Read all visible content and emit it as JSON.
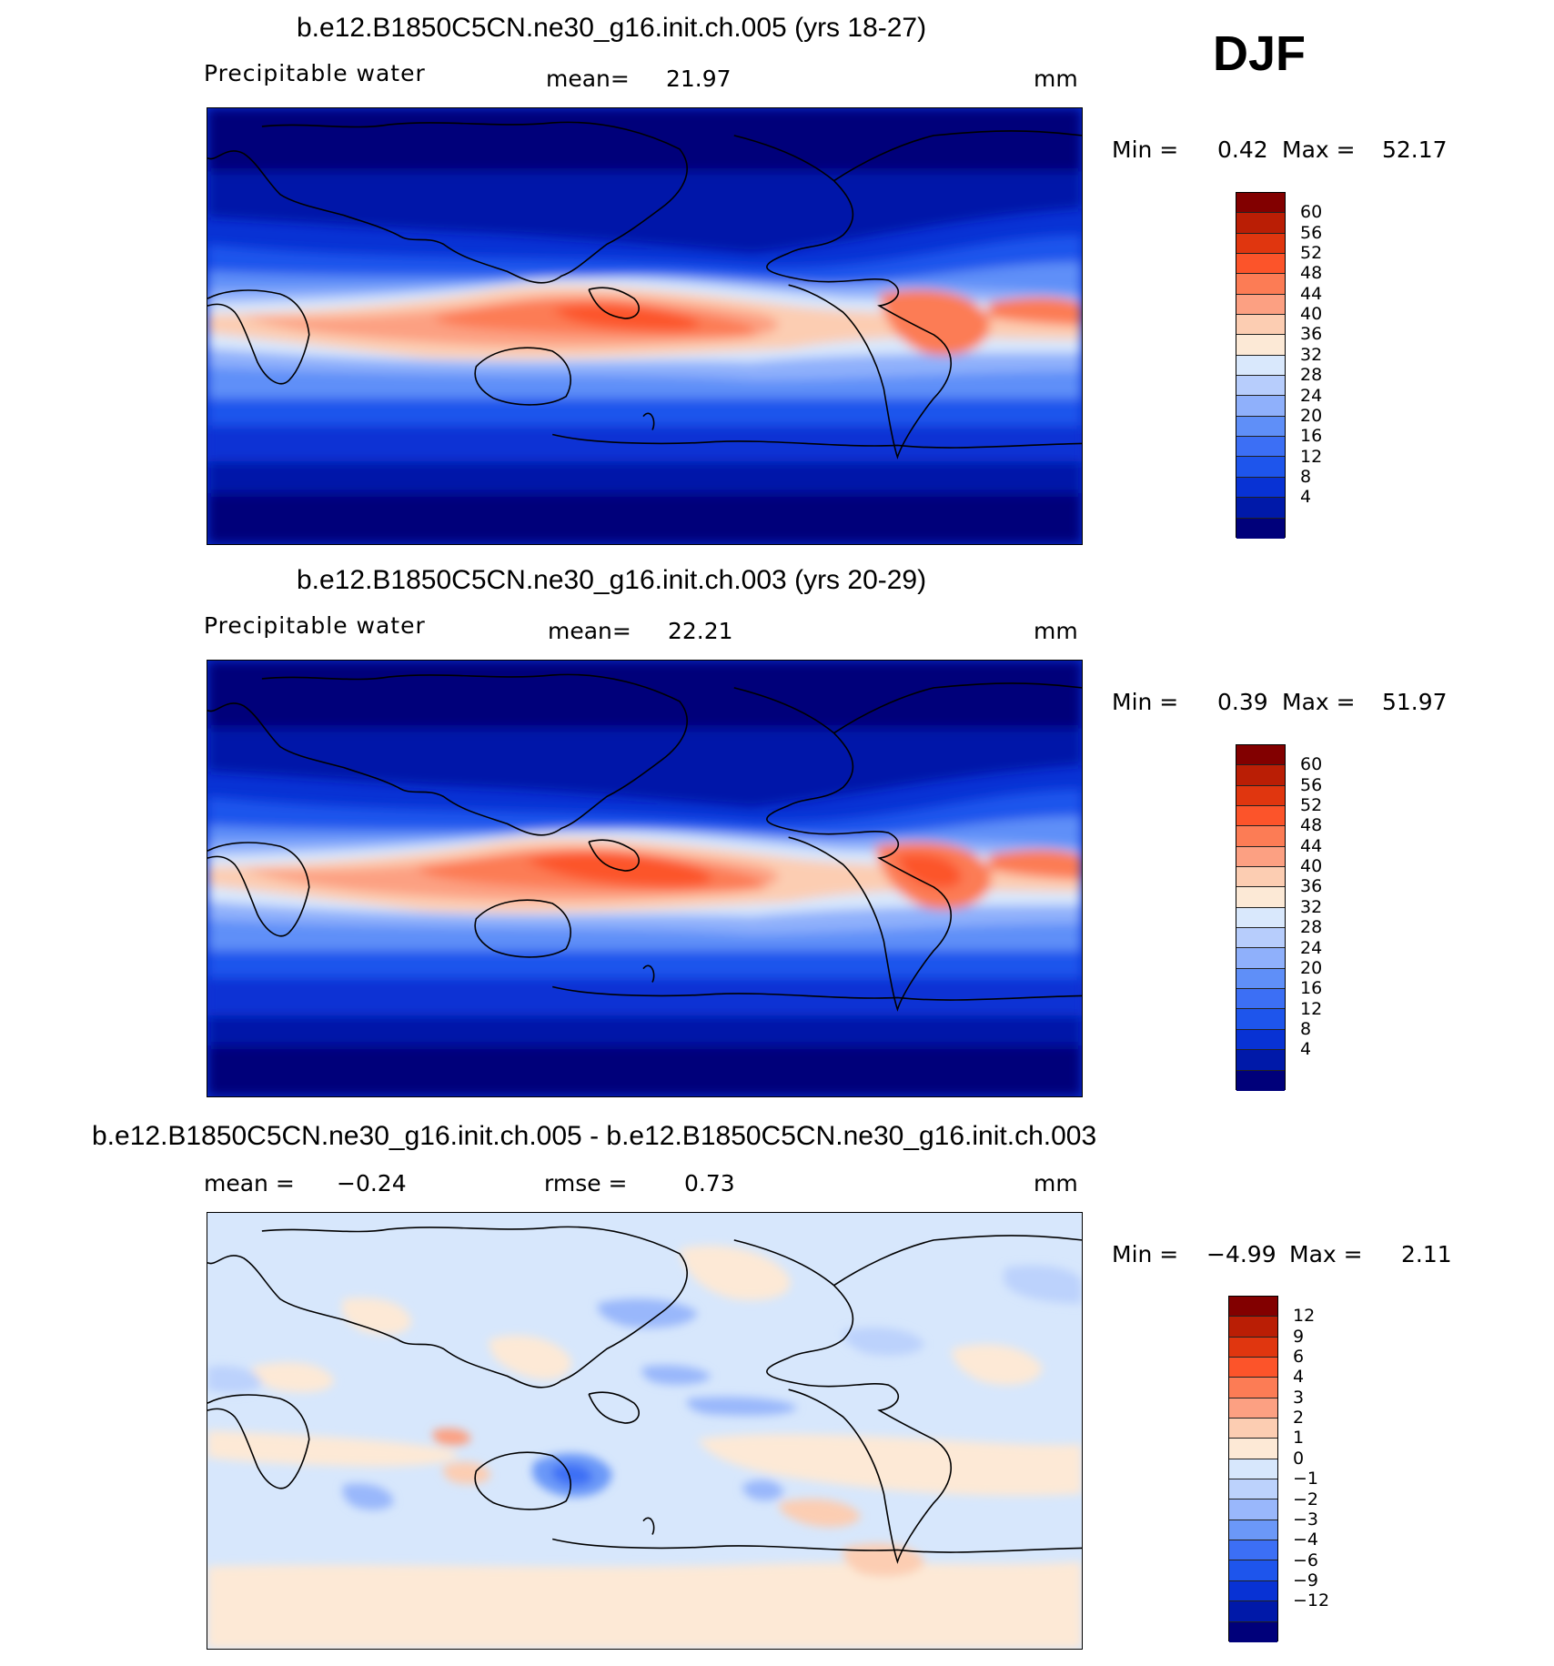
{
  "season": "DJF",
  "colors": {
    "abs_scale": [
      "#00007a",
      "#0019a9",
      "#0832d4",
      "#1e55ec",
      "#3c6ff5",
      "#5f8ff8",
      "#8fb0fb",
      "#b7cdfc",
      "#d9e8fc",
      "#fce9d6",
      "#fccdb2",
      "#fca082",
      "#fc7c55",
      "#fc542a",
      "#e0360f",
      "#ba1e05",
      "#820000"
    ],
    "diff_scale": [
      "#00007a",
      "#0019a9",
      "#0832d4",
      "#1e55ec",
      "#3c6ff5",
      "#6b98f8",
      "#99b7fb",
      "#bcd2fc",
      "#d7e7fc",
      "#fde9d6",
      "#fccdb2",
      "#fca082",
      "#fc7c55",
      "#fc542a",
      "#e0360f",
      "#ba1e05",
      "#820000"
    ]
  },
  "panels": [
    {
      "title": "b.e12.B1850C5CN.ne30_g16.init.ch.005 (yrs 18-27)",
      "variable": "Precipitable  water",
      "stat1_label": "mean=",
      "stat1_value": "21.97",
      "units": "mm",
      "min_label": "Min  =",
      "min_value": "0.42",
      "max_label": "Max  =",
      "max_value": "52.17",
      "colorbar_ticks": [
        "60",
        "56",
        "52",
        "48",
        "44",
        "40",
        "36",
        "32",
        "28",
        "24",
        "20",
        "16",
        "12",
        "8",
        "4"
      ]
    },
    {
      "title": "b.e12.B1850C5CN.ne30_g16.init.ch.003 (yrs 20-29)",
      "variable": "Precipitable  water",
      "stat1_label": "mean=",
      "stat1_value": "22.21",
      "units": "mm",
      "min_label": "Min  =",
      "min_value": "0.39",
      "max_label": "Max  =",
      "max_value": "51.97",
      "colorbar_ticks": [
        "60",
        "56",
        "52",
        "48",
        "44",
        "40",
        "36",
        "32",
        "28",
        "24",
        "20",
        "16",
        "12",
        "8",
        "4"
      ]
    },
    {
      "title": "b.e12.B1850C5CN.ne30_g16.init.ch.005 - b.e12.B1850C5CN.ne30_g16.init.ch.003",
      "stat1_label": "mean  =",
      "stat1_value": "−0.24",
      "stat2_label": "rmse  =",
      "stat2_value": "0.73",
      "units": "mm",
      "min_label": "Min  =",
      "min_value": "−4.99",
      "max_label": "Max  =",
      "max_value": "2.11",
      "colorbar_ticks": [
        "12",
        "9",
        "6",
        "4",
        "3",
        "2",
        "1",
        "0",
        "−1",
        "−2",
        "−3",
        "−4",
        "−6",
        "−9",
        "−12"
      ]
    }
  ]
}
